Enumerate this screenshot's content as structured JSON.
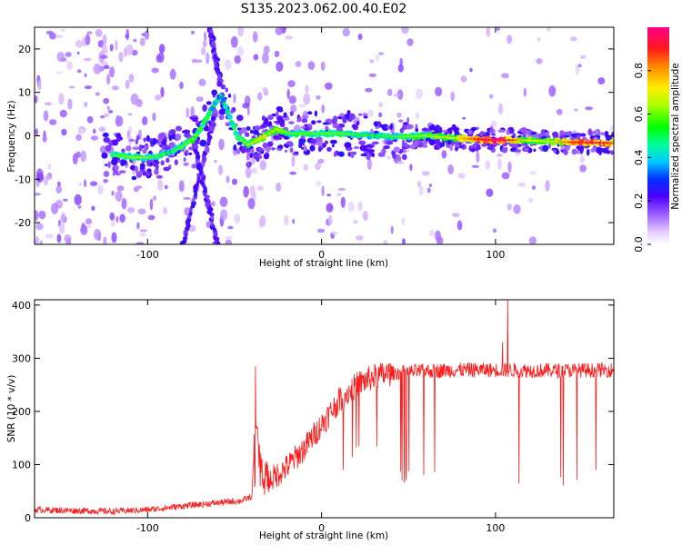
{
  "title": "S135.2023.062.00.40.E02",
  "chart_data": [
    {
      "type": "heatmap",
      "xlabel": "Height of straight line (km)",
      "ylabel": "Frequency (Hz)",
      "xlim": [
        -165,
        168
      ],
      "ylim": [
        -25,
        25
      ],
      "xticks": [
        -100,
        0,
        100
      ],
      "yticks": [
        -20,
        -10,
        0,
        10,
        20
      ],
      "colorbar": {
        "label": "Normalized spectral amplitude",
        "range": [
          0.0,
          1.0
        ],
        "ticks": [
          "0.0",
          "0.2",
          "0.4",
          "0.6",
          "0.8"
        ]
      },
      "ridge": [
        {
          "x": -118,
          "f": -4.5,
          "a": 0.45
        },
        {
          "x": -108,
          "f": -5.0,
          "a": 0.5
        },
        {
          "x": -98,
          "f": -5.0,
          "a": 0.45
        },
        {
          "x": -88,
          "f": -4.0,
          "a": 0.4
        },
        {
          "x": -80,
          "f": -2.5,
          "a": 0.45
        },
        {
          "x": -73,
          "f": -0.5,
          "a": 0.5
        },
        {
          "x": -58,
          "f": 9.5,
          "a": 0.35
        },
        {
          "x": -48,
          "f": -0.5,
          "a": 0.45
        },
        {
          "x": -42,
          "f": -2.0,
          "a": 0.55
        },
        {
          "x": -34,
          "f": -0.5,
          "a": 0.6
        },
        {
          "x": -26,
          "f": 1.5,
          "a": 0.55
        },
        {
          "x": -18,
          "f": 0.5,
          "a": 0.45
        },
        {
          "x": -10,
          "f": 0.5,
          "a": 0.45
        },
        {
          "x": 0,
          "f": 0.5,
          "a": 0.45
        },
        {
          "x": 12,
          "f": 0.5,
          "a": 0.45
        },
        {
          "x": 30,
          "f": 0.0,
          "a": 0.4
        },
        {
          "x": 45,
          "f": -0.2,
          "a": 0.45
        },
        {
          "x": 60,
          "f": 0.0,
          "a": 0.5
        },
        {
          "x": 75,
          "f": -0.5,
          "a": 0.55
        },
        {
          "x": 90,
          "f": -0.8,
          "a": 0.75
        },
        {
          "x": 100,
          "f": -1.0,
          "a": 0.95
        },
        {
          "x": 115,
          "f": -1.0,
          "a": 0.6
        },
        {
          "x": 130,
          "f": -1.3,
          "a": 0.55
        },
        {
          "x": 145,
          "f": -1.5,
          "a": 0.75
        },
        {
          "x": 160,
          "f": -1.6,
          "a": 0.8
        },
        {
          "x": 168,
          "f": -1.7,
          "a": 0.7
        }
      ],
      "streaks": [
        {
          "x0": -80,
          "f0": -25,
          "x1": -62,
          "f1": 4
        },
        {
          "x0": -60,
          "f0": -25,
          "x1": -73,
          "f1": -2
        },
        {
          "x0": -64,
          "f0": 25,
          "x1": -58,
          "f1": 12
        }
      ]
    },
    {
      "type": "line",
      "xlabel": "Height of straight line (km)",
      "ylabel": "SNR (10 * v/v)",
      "xlim": [
        -165,
        168
      ],
      "ylim": [
        0,
        410
      ],
      "xticks": [
        -100,
        0,
        100
      ],
      "yticks": [
        0,
        100,
        200,
        300,
        400
      ],
      "color": "#ff1a1a",
      "envelope": [
        {
          "x": -165,
          "y": 15
        },
        {
          "x": -120,
          "y": 12
        },
        {
          "x": -100,
          "y": 15
        },
        {
          "x": -80,
          "y": 22
        },
        {
          "x": -60,
          "y": 28
        },
        {
          "x": -46,
          "y": 32
        },
        {
          "x": -40,
          "y": 40
        },
        {
          "x": -38,
          "y": 195
        },
        {
          "x": -36,
          "y": 115
        },
        {
          "x": -30,
          "y": 70
        },
        {
          "x": -20,
          "y": 95
        },
        {
          "x": -10,
          "y": 130
        },
        {
          "x": 0,
          "y": 175
        },
        {
          "x": 10,
          "y": 220
        },
        {
          "x": 20,
          "y": 250
        },
        {
          "x": 30,
          "y": 265
        },
        {
          "x": 40,
          "y": 272
        },
        {
          "x": 60,
          "y": 276
        },
        {
          "x": 80,
          "y": 278
        },
        {
          "x": 100,
          "y": 278
        },
        {
          "x": 120,
          "y": 277
        },
        {
          "x": 140,
          "y": 277
        },
        {
          "x": 168,
          "y": 278
        }
      ],
      "peaks": [
        {
          "x": -38,
          "y": 285
        },
        {
          "x": 104,
          "y": 330
        },
        {
          "x": 107,
          "y": 410
        }
      ]
    }
  ]
}
